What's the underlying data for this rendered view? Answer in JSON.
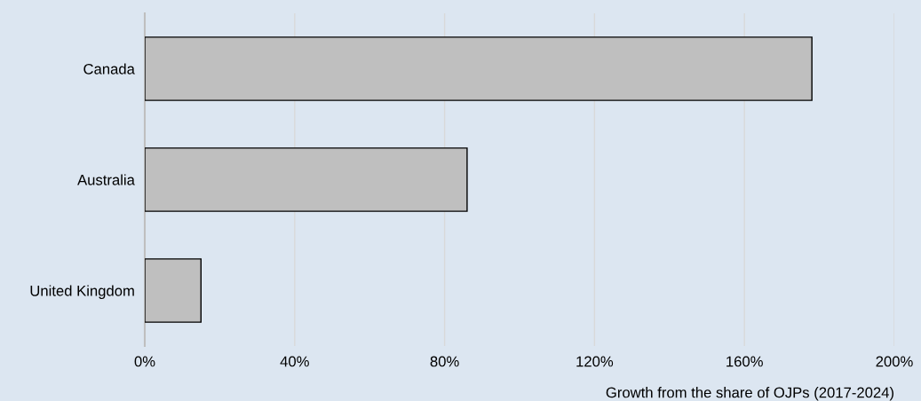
{
  "chart_data": {
    "type": "bar",
    "orientation": "horizontal",
    "xlabel": "Growth from the share of OJPs (2017-2024)",
    "categories": [
      "Canada",
      "Australia",
      "United Kingdom"
    ],
    "values": [
      178,
      86,
      15
    ],
    "color": "#bfbfbf",
    "xlim": [
      0,
      200
    ],
    "xticks": [
      {
        "value": 0,
        "label": "0%"
      },
      {
        "value": 40,
        "label": "40%"
      },
      {
        "value": 80,
        "label": "80%"
      },
      {
        "value": 120,
        "label": "120%"
      },
      {
        "value": 160,
        "label": "160%"
      },
      {
        "value": 200,
        "label": "200%"
      }
    ],
    "grid": "x"
  }
}
